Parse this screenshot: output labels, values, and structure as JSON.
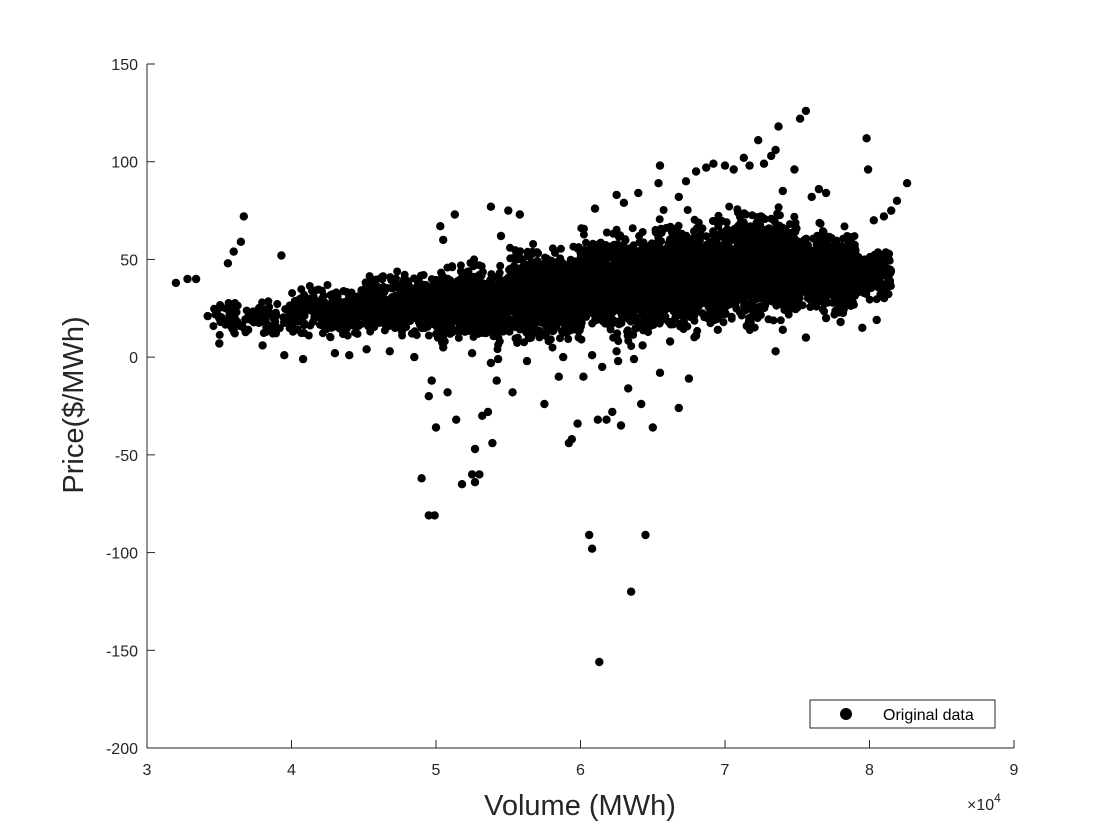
{
  "chart_data": {
    "type": "scatter",
    "title": "",
    "xlabel": "Volume (MWh)",
    "ylabel": "Price($/MWh)",
    "xlim": [
      30000,
      90000
    ],
    "ylim": [
      -200,
      150
    ],
    "x_ticks": [
      30000,
      40000,
      50000,
      60000,
      70000,
      80000,
      90000
    ],
    "x_tick_labels": [
      "3",
      "4",
      "5",
      "6",
      "7",
      "8",
      "9"
    ],
    "x_exponent_label": {
      "base": "×10",
      "power": "4"
    },
    "y_ticks": [
      -200,
      -150,
      -100,
      -50,
      0,
      50,
      100,
      150
    ],
    "y_tick_labels": [
      "-200",
      "-150",
      "-100",
      "-50",
      "0",
      "50",
      "100",
      "150"
    ],
    "grid": false,
    "legend": {
      "position": "bottom-right",
      "entries": [
        "Original data"
      ]
    },
    "series": [
      {
        "name": "Original data",
        "color": "#000000",
        "marker": "filled-circle",
        "points": [
          [
            32000,
            38
          ],
          [
            32800,
            40
          ],
          [
            33400,
            40
          ],
          [
            34200,
            21
          ],
          [
            35000,
            7
          ],
          [
            35600,
            48
          ],
          [
            36000,
            54
          ],
          [
            36500,
            59
          ],
          [
            36700,
            72
          ],
          [
            37000,
            14
          ],
          [
            39300,
            52
          ],
          [
            38000,
            6
          ],
          [
            39500,
            1
          ],
          [
            40800,
            -1
          ],
          [
            43000,
            2
          ],
          [
            49000,
            -62
          ],
          [
            49500,
            -81
          ],
          [
            49900,
            -81
          ],
          [
            49500,
            -20
          ],
          [
            49700,
            -12
          ],
          [
            50000,
            -36
          ],
          [
            50800,
            -18
          ],
          [
            51400,
            -32
          ],
          [
            51800,
            -65
          ],
          [
            52500,
            -60
          ],
          [
            52700,
            -47
          ],
          [
            52700,
            -64
          ],
          [
            53000,
            -60
          ],
          [
            53200,
            -30
          ],
          [
            53600,
            -28
          ],
          [
            53900,
            -44
          ],
          [
            53800,
            -3
          ],
          [
            54200,
            -12
          ],
          [
            55300,
            -18
          ],
          [
            50300,
            67
          ],
          [
            50500,
            60
          ],
          [
            51300,
            73
          ],
          [
            53800,
            77
          ],
          [
            55000,
            75
          ],
          [
            55800,
            73
          ],
          [
            54500,
            62
          ],
          [
            57500,
            -24
          ],
          [
            58500,
            -10
          ],
          [
            59200,
            -44
          ],
          [
            59400,
            -42
          ],
          [
            59800,
            -34
          ],
          [
            60200,
            -10
          ],
          [
            60600,
            -91
          ],
          [
            60800,
            -98
          ],
          [
            61200,
            -32
          ],
          [
            61500,
            -5
          ],
          [
            61300,
            -156
          ],
          [
            61800,
            -32
          ],
          [
            62200,
            -28
          ],
          [
            62600,
            -2
          ],
          [
            62800,
            -35
          ],
          [
            63300,
            -16
          ],
          [
            63500,
            -120
          ],
          [
            63700,
            -1
          ],
          [
            64200,
            -24
          ],
          [
            64500,
            -91
          ],
          [
            65000,
            -36
          ],
          [
            65500,
            -8
          ],
          [
            66800,
            -26
          ],
          [
            67500,
            -11
          ],
          [
            61000,
            76
          ],
          [
            62500,
            83
          ],
          [
            63000,
            79
          ],
          [
            64000,
            84
          ],
          [
            65400,
            89
          ],
          [
            65500,
            98
          ],
          [
            66800,
            82
          ],
          [
            67300,
            90
          ],
          [
            68000,
            95
          ],
          [
            68700,
            97
          ],
          [
            69200,
            99
          ],
          [
            70000,
            98
          ],
          [
            70600,
            96
          ],
          [
            71300,
            102
          ],
          [
            71700,
            98
          ],
          [
            72300,
            111
          ],
          [
            72700,
            99
          ],
          [
            73200,
            103
          ],
          [
            73500,
            106
          ],
          [
            73700,
            118
          ],
          [
            74000,
            85
          ],
          [
            75200,
            122
          ],
          [
            75600,
            126
          ],
          [
            76000,
            82
          ],
          [
            76500,
            86
          ],
          [
            77000,
            84
          ],
          [
            74800,
            96
          ],
          [
            79800,
            112
          ],
          [
            79900,
            96
          ],
          [
            80300,
            70
          ],
          [
            81000,
            72
          ],
          [
            81500,
            75
          ],
          [
            81900,
            80
          ],
          [
            82600,
            89
          ],
          [
            80500,
            19
          ],
          [
            81000,
            36
          ],
          [
            81400,
            38
          ],
          [
            79500,
            15
          ],
          [
            78000,
            18
          ],
          [
            77000,
            20
          ],
          [
            75600,
            10
          ],
          [
            73500,
            3
          ],
          [
            74000,
            14
          ],
          [
            71500,
            16
          ],
          [
            69500,
            14
          ],
          [
            68000,
            11
          ],
          [
            66200,
            8
          ],
          [
            64300,
            6
          ],
          [
            62500,
            3
          ],
          [
            60800,
            1
          ],
          [
            58800,
            0
          ],
          [
            56300,
            -2
          ],
          [
            54300,
            -1
          ],
          [
            52500,
            2
          ],
          [
            50500,
            5
          ],
          [
            48500,
            0
          ],
          [
            46800,
            3
          ],
          [
            45200,
            4
          ],
          [
            44000,
            1
          ]
        ]
      }
    ],
    "cloud_bands": [
      {
        "x0": 34500,
        "x1": 40000,
        "y_lo": 10,
        "y_hi": 30,
        "n": 120
      },
      {
        "x0": 40000,
        "x1": 45000,
        "y_lo": 10,
        "y_hi": 38,
        "n": 280
      },
      {
        "x0": 45000,
        "x1": 50000,
        "y_lo": 8,
        "y_hi": 44,
        "n": 420
      },
      {
        "x0": 50000,
        "x1": 55000,
        "y_lo": 4,
        "y_hi": 50,
        "n": 620
      },
      {
        "x0": 55000,
        "x1": 60000,
        "y_lo": 5,
        "y_hi": 58,
        "n": 800
      },
      {
        "x0": 60000,
        "x1": 65000,
        "y_lo": 8,
        "y_hi": 66,
        "n": 950
      },
      {
        "x0": 65000,
        "x1": 70000,
        "y_lo": 12,
        "y_hi": 72,
        "n": 1100
      },
      {
        "x0": 70000,
        "x1": 75000,
        "y_lo": 16,
        "y_hi": 76,
        "n": 1000
      },
      {
        "x0": 75000,
        "x1": 79000,
        "y_lo": 20,
        "y_hi": 68,
        "n": 600
      },
      {
        "x0": 79000,
        "x1": 81500,
        "y_lo": 28,
        "y_hi": 58,
        "n": 140
      }
    ]
  }
}
